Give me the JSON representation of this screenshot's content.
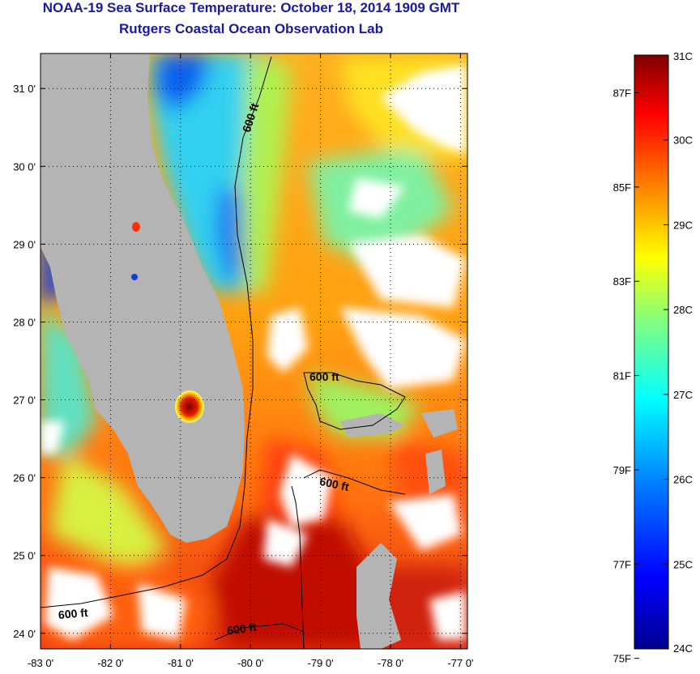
{
  "title": "NOAA-19 Sea Surface Temperature:  October 18, 2014 1909 GMT",
  "subtitle": "Rutgers Coastal Ocean Observation Lab",
  "map": {
    "lon_range": [
      -83,
      -76.9
    ],
    "lat_range": [
      23.8,
      31.45
    ],
    "lon_ticks": [
      "-83 0'",
      "-82 0'",
      "-81 0'",
      "-80 0'",
      "-79 0'",
      "-78 0'",
      "-77 0'"
    ],
    "lat_ticks": [
      "24 0'",
      "25 0'",
      "26 0'",
      "27 0'",
      "28 0'",
      "29 0'",
      "30 0'",
      "31 0'"
    ],
    "grid": true,
    "land_color": "#b4b4b4",
    "cloud_color": "#ffffff",
    "contour_labels": [
      "600 ft",
      "600 ft",
      "600 ft",
      "600 ft",
      "600 ft"
    ]
  },
  "colorbar": {
    "celsius_ticks": [
      "31C",
      "30C",
      "29C",
      "28C",
      "27C",
      "26C",
      "25C",
      "24C"
    ],
    "fahrenheit_ticks": [
      "87F",
      "85F",
      "83F",
      "81F",
      "79F",
      "77F",
      "75F"
    ],
    "celsius_range": [
      24,
      31
    ],
    "colors": [
      "#00008f",
      "#0000ff",
      "#0080ff",
      "#00ffff",
      "#80ff80",
      "#ffff00",
      "#ff8000",
      "#ff0000",
      "#800000"
    ]
  }
}
